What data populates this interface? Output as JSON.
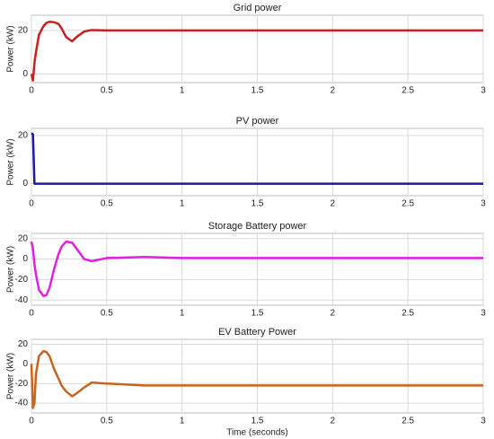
{
  "chart_data": [
    {
      "type": "line",
      "title": "Grid power",
      "ylabel": "Power (kW)",
      "x": [
        0,
        0.01,
        0.02,
        0.03,
        0.05,
        0.08,
        0.1,
        0.12,
        0.15,
        0.18,
        0.2,
        0.23,
        0.27,
        0.3,
        0.35,
        0.4,
        0.5,
        0.75,
        1,
        1.5,
        2,
        2.5,
        3
      ],
      "series": [
        {
          "color": "#cc1f1f",
          "values": [
            0,
            -3,
            5,
            10,
            18,
            22,
            23.5,
            24,
            23.8,
            23,
            21,
            17,
            15,
            17,
            19.5,
            20.2,
            20,
            20,
            20,
            20,
            20,
            20,
            20
          ]
        }
      ],
      "xlim": [
        0,
        3
      ],
      "xticks": [
        0,
        0.5,
        1,
        1.5,
        2,
        2.5,
        3
      ],
      "ylim": [
        -4,
        27
      ],
      "yticks": [
        0,
        20
      ],
      "grid": true
    },
    {
      "type": "line",
      "title": "PV power",
      "ylabel": "Power (kW)",
      "x": [
        0,
        0.01,
        0.02,
        0.03,
        0.05,
        0.08,
        0.1,
        0.12,
        0.15,
        0.18,
        0.2,
        0.23,
        0.27,
        0.3,
        0.35,
        0.4,
        0.5,
        0.75,
        1,
        1.5,
        2,
        2.5,
        3
      ],
      "series": [
        {
          "color": "#1a1aa8",
          "values": [
            21,
            20.5,
            0,
            0,
            0,
            0,
            0,
            0,
            0,
            0,
            0,
            0,
            0,
            0,
            0,
            0,
            0,
            0,
            0,
            0,
            0,
            0,
            0
          ]
        }
      ],
      "xlim": [
        0,
        3
      ],
      "xticks": [
        0,
        0.5,
        1,
        1.5,
        2,
        2.5,
        3
      ],
      "ylim": [
        -5,
        23
      ],
      "yticks": [
        0,
        20
      ],
      "grid": true
    },
    {
      "type": "line",
      "title": "Storage Battery power",
      "ylabel": "Power (kW)",
      "x": [
        0,
        0.01,
        0.02,
        0.03,
        0.05,
        0.08,
        0.1,
        0.12,
        0.15,
        0.18,
        0.2,
        0.23,
        0.27,
        0.3,
        0.35,
        0.4,
        0.5,
        0.75,
        1,
        1.5,
        2,
        2.5,
        3
      ],
      "series": [
        {
          "color": "#e020e0",
          "values": [
            17,
            10,
            -5,
            -15,
            -30,
            -36,
            -35,
            -28,
            -10,
            5,
            12,
            17,
            16,
            10,
            0,
            -2,
            1,
            2,
            1,
            1,
            1,
            1,
            1
          ]
        }
      ],
      "xlim": [
        0,
        3
      ],
      "xticks": [
        0,
        0.5,
        1,
        1.5,
        2,
        2.5,
        3
      ],
      "ylim": [
        -45,
        25
      ],
      "yticks": [
        -40,
        -20,
        0,
        20
      ],
      "grid": true
    },
    {
      "type": "line",
      "title": "EV Battery Power",
      "ylabel": "Power (kW)",
      "xlabel": "Time (seconds)",
      "x": [
        0,
        0.01,
        0.02,
        0.03,
        0.05,
        0.08,
        0.1,
        0.12,
        0.15,
        0.18,
        0.2,
        0.23,
        0.27,
        0.3,
        0.35,
        0.4,
        0.5,
        0.75,
        1,
        1.5,
        2,
        2.5,
        3
      ],
      "series": [
        {
          "color": "#c8641e",
          "values": [
            0,
            -45,
            -40,
            -10,
            8,
            13,
            12,
            8,
            -5,
            -15,
            -22,
            -28,
            -33,
            -30,
            -24,
            -19,
            -20,
            -22,
            -22,
            -22,
            -22,
            -22,
            -22
          ]
        }
      ],
      "xlim": [
        0,
        3
      ],
      "xticks": [
        0,
        0.5,
        1,
        1.5,
        2,
        2.5,
        3
      ],
      "ylim": [
        -50,
        25
      ],
      "yticks": [
        -40,
        -20,
        0,
        20
      ],
      "grid": true
    }
  ]
}
